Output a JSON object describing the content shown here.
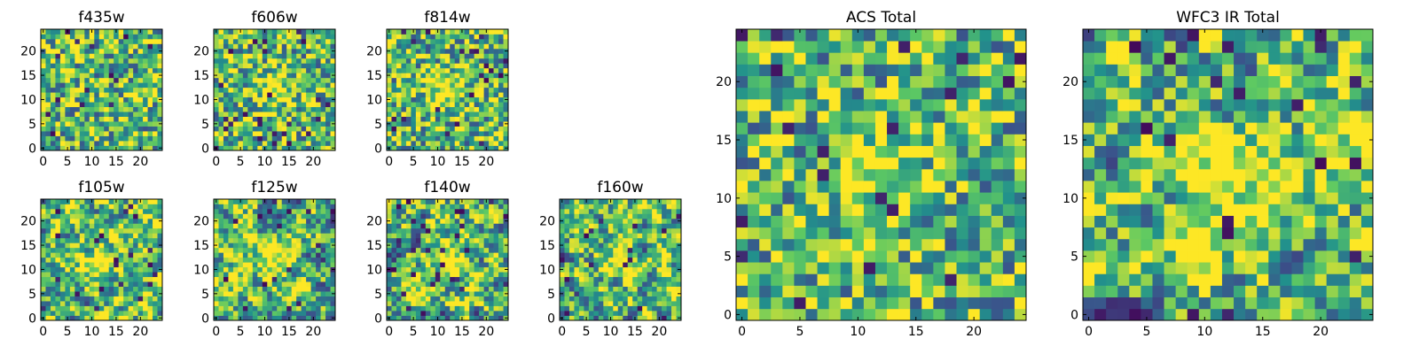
{
  "figure": {
    "colormap": [
      "#440154",
      "#3b528b",
      "#21918c",
      "#5ec962",
      "#fde725"
    ]
  },
  "chart_data": [
    {
      "type": "heatmap",
      "title": "f435w",
      "grid_size": 25,
      "xlim": [
        0,
        24
      ],
      "ylim": [
        0,
        24
      ],
      "xticks": [
        0,
        5,
        10,
        15,
        20
      ],
      "yticks": [
        0,
        5,
        10,
        15,
        20
      ],
      "pattern": "noise",
      "seed": 11
    },
    {
      "type": "heatmap",
      "title": "f606w",
      "grid_size": 25,
      "xlim": [
        0,
        24
      ],
      "ylim": [
        0,
        24
      ],
      "xticks": [
        0,
        5,
        10,
        15,
        20
      ],
      "yticks": [
        0,
        5,
        10,
        15,
        20
      ],
      "pattern": "noise-center",
      "seed": 23
    },
    {
      "type": "heatmap",
      "title": "f814w",
      "grid_size": 25,
      "xlim": [
        0,
        24
      ],
      "ylim": [
        0,
        24
      ],
      "xticks": [
        0,
        5,
        10,
        15,
        20
      ],
      "yticks": [
        0,
        5,
        10,
        15,
        20
      ],
      "pattern": "noise-center",
      "seed": 37
    },
    {
      "type": "heatmap",
      "title": "f105w",
      "grid_size": 25,
      "xlim": [
        0,
        24
      ],
      "ylim": [
        0,
        24
      ],
      "xticks": [
        0,
        5,
        10,
        15,
        20
      ],
      "yticks": [
        0,
        5,
        10,
        15,
        20
      ],
      "pattern": "smooth",
      "seed": 41
    },
    {
      "type": "heatmap",
      "title": "f125w",
      "grid_size": 25,
      "xlim": [
        0,
        24
      ],
      "ylim": [
        0,
        24
      ],
      "xticks": [
        0,
        5,
        10,
        15,
        20
      ],
      "yticks": [
        0,
        5,
        10,
        15,
        20
      ],
      "pattern": "smooth",
      "seed": 53
    },
    {
      "type": "heatmap",
      "title": "f140w",
      "grid_size": 25,
      "xlim": [
        0,
        24
      ],
      "ylim": [
        0,
        24
      ],
      "xticks": [
        0,
        5,
        10,
        15,
        20
      ],
      "yticks": [
        0,
        5,
        10,
        15,
        20
      ],
      "pattern": "smooth",
      "seed": 67
    },
    {
      "type": "heatmap",
      "title": "f160w",
      "grid_size": 25,
      "xlim": [
        0,
        24
      ],
      "ylim": [
        0,
        24
      ],
      "xticks": [
        0,
        5,
        10,
        15,
        20
      ],
      "yticks": [
        0,
        5,
        10,
        15,
        20
      ],
      "pattern": "smooth",
      "seed": 79
    },
    {
      "type": "heatmap",
      "title": "ACS Total",
      "grid_size": 25,
      "xlim": [
        0,
        24
      ],
      "ylim": [
        0,
        24
      ],
      "xticks": [
        0,
        5,
        10,
        15,
        20
      ],
      "yticks": [
        0,
        5,
        10,
        15,
        20
      ],
      "pattern": "noise-center",
      "seed": 83
    },
    {
      "type": "heatmap",
      "title": "WFC3 IR Total",
      "grid_size": 25,
      "xlim": [
        0,
        24
      ],
      "ylim": [
        0,
        24
      ],
      "xticks": [
        0,
        5,
        10,
        15,
        20
      ],
      "yticks": [
        0,
        5,
        10,
        15,
        20
      ],
      "pattern": "smooth",
      "seed": 97
    }
  ]
}
